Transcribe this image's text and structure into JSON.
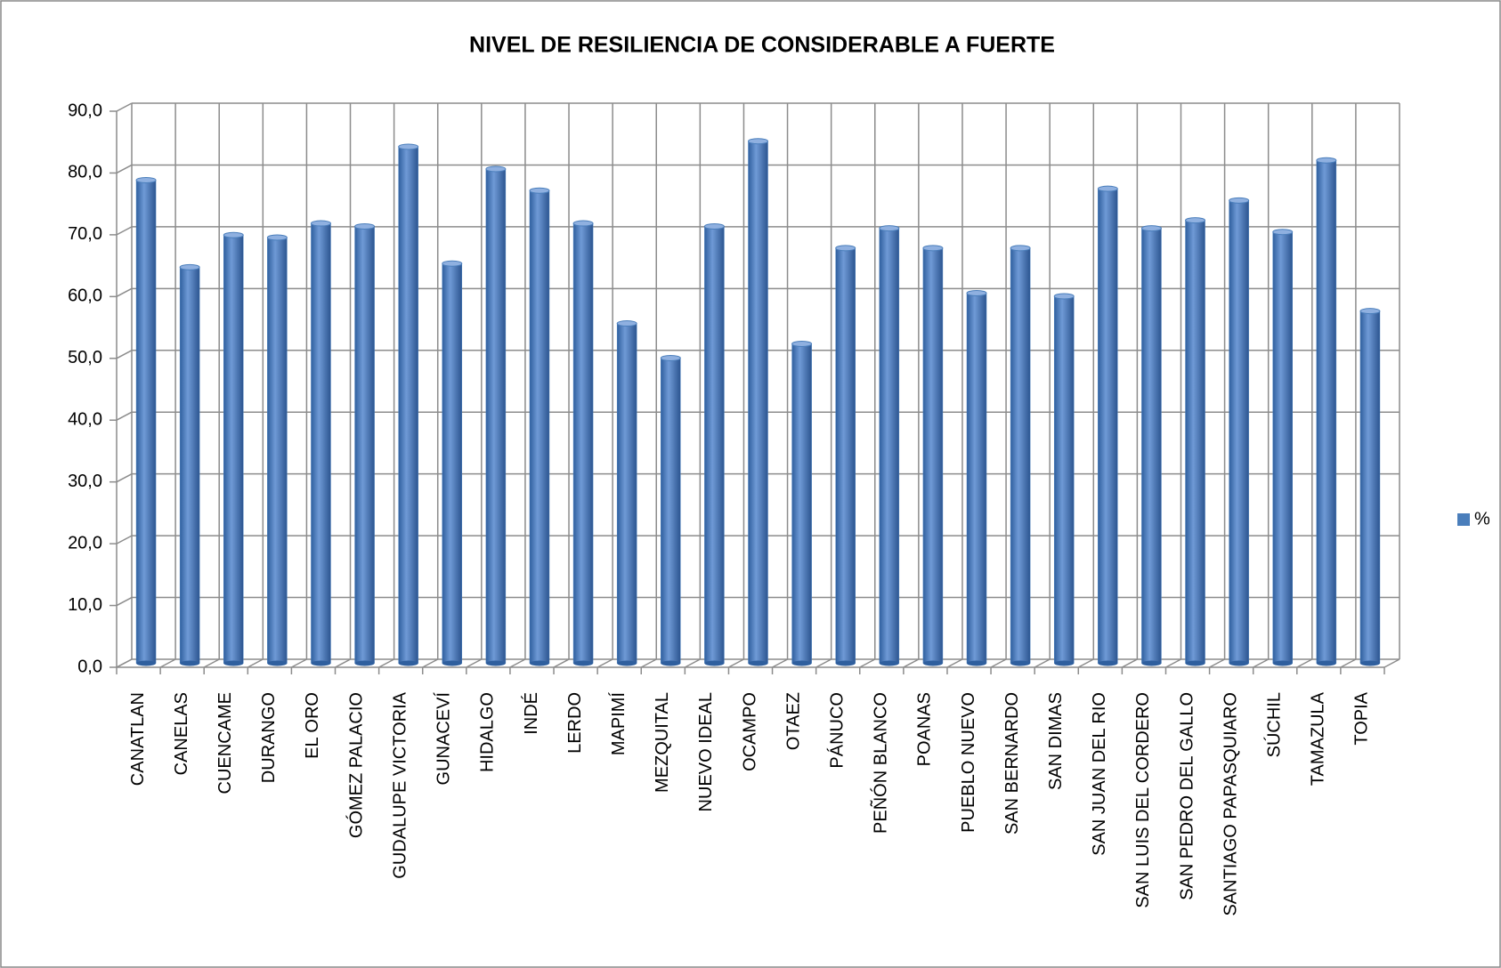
{
  "chart_data": {
    "type": "bar",
    "title": "NIVEL DE RESILIENCIA DE CONSIDERABLE A FUERTE",
    "categories": [
      "CANATLAN",
      "CANELAS",
      "CUENCAME",
      "DURANGO",
      "EL ORO",
      "GÓMEZ PALACIO",
      "GUDALUPE VICTORIA",
      "GUNACEVÍ",
      "HIDALGO",
      "INDÉ",
      "LERDO",
      "MAPIMÍ",
      "MEZQUITAL",
      "NUEVO IDEAL",
      "OCAMPO",
      "OTAEZ",
      "PÁNUCO",
      "PEÑÓN BLANCO",
      "POANAS",
      "PUEBLO NUEVO",
      "SAN BERNARDO",
      "SAN DIMAS",
      "SAN JUAN DEL RIO",
      "SAN LUIS DEL CORDERO",
      "SAN PEDRO DEL GALLO",
      "SANTIAGO PAPASQUIARO",
      "SÚCHIL",
      "TAMAZULA",
      "TOPIA"
    ],
    "series": [
      {
        "name": "%",
        "color": "#4a7ebb",
        "values": [
          78.2,
          64.1,
          69.3,
          68.9,
          71.2,
          70.7,
          83.6,
          64.7,
          80.0,
          76.5,
          71.2,
          55.0,
          49.4,
          70.7,
          84.5,
          51.7,
          67.2,
          70.4,
          67.2,
          59.9,
          67.2,
          59.4,
          76.8,
          70.4,
          71.7,
          74.9,
          69.8,
          81.4,
          57.0
        ]
      }
    ],
    "ylim": [
      0,
      90
    ],
    "yticks": [
      {
        "value": 0,
        "label": "0,0"
      },
      {
        "value": 10,
        "label": "10,0"
      },
      {
        "value": 20,
        "label": "20,0"
      },
      {
        "value": 30,
        "label": "30,0"
      },
      {
        "value": 40,
        "label": "40,0"
      },
      {
        "value": 50,
        "label": "50,0"
      },
      {
        "value": 60,
        "label": "60,0"
      },
      {
        "value": 70,
        "label": "70,0"
      },
      {
        "value": 80,
        "label": "80,0"
      },
      {
        "value": 90,
        "label": "90,0"
      }
    ],
    "grid": true,
    "legend": "right"
  }
}
